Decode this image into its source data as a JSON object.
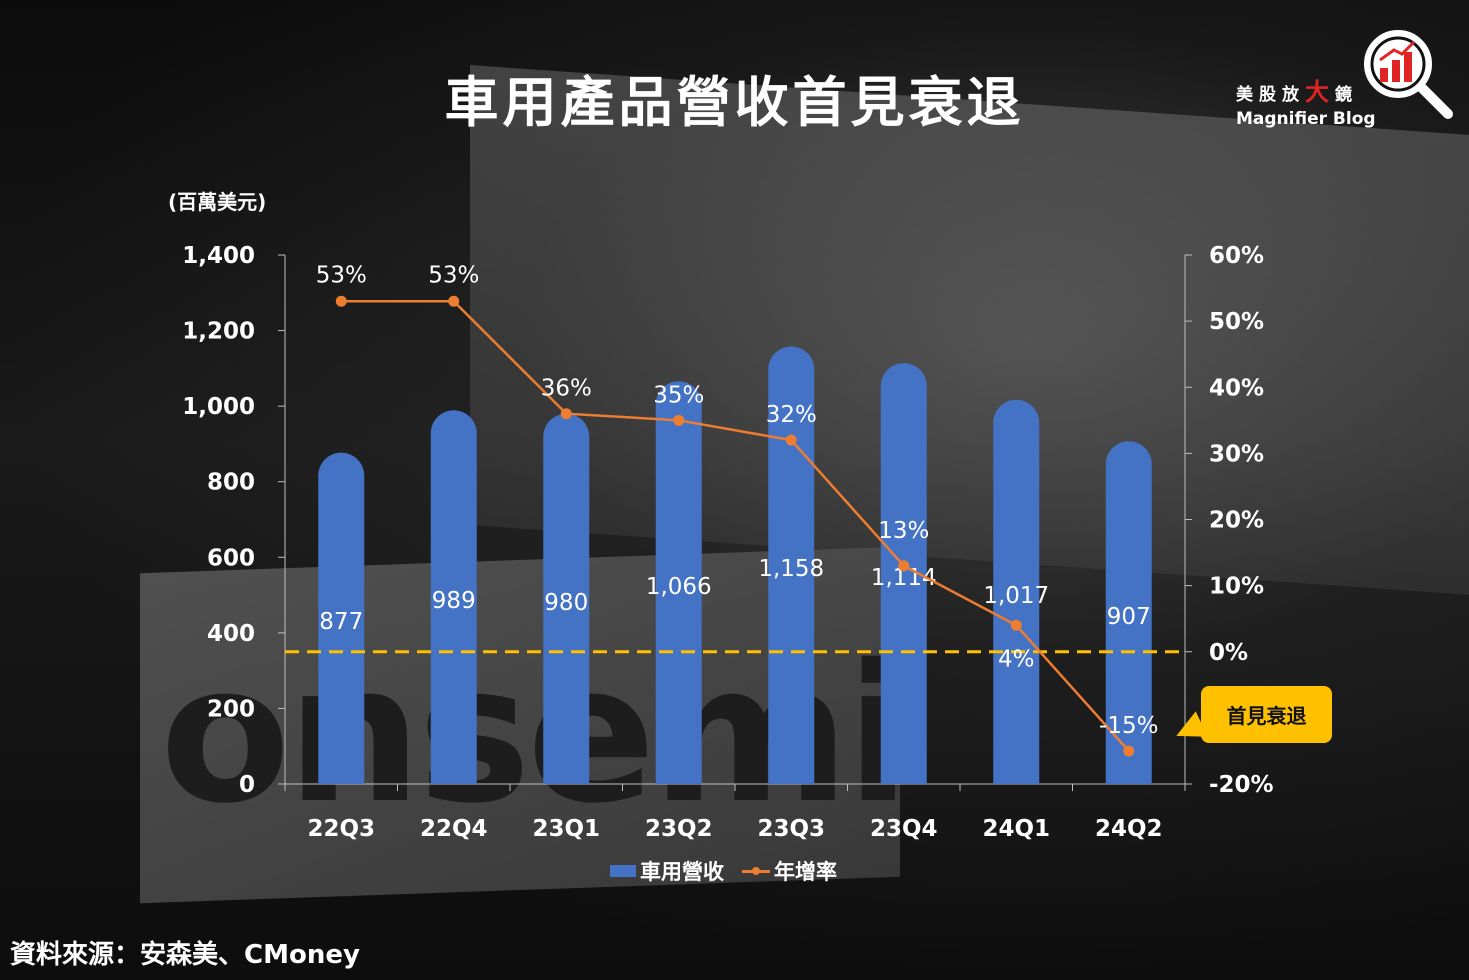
{
  "title": "車用產品營收首見衰退",
  "brand": {
    "cn_prefix": "美股放",
    "cn_accent": "大",
    "cn_suffix": "鏡",
    "en": "Magnifier Blog"
  },
  "unit_label": "(百萬美元)",
  "source": "資料來源：安森美、CMoney",
  "callout": "首見衰退",
  "background_logo": "onsemi",
  "colors": {
    "bar": "#4472c4",
    "line": "#ed7d31",
    "zero_line": "#ffc000",
    "callout": "#ffc000",
    "brand_accent": "#e02424"
  },
  "chart_data": {
    "type": "bar",
    "categories": [
      "22Q3",
      "22Q4",
      "23Q1",
      "23Q2",
      "23Q3",
      "23Q4",
      "24Q1",
      "24Q2"
    ],
    "series": [
      {
        "name": "車用營收",
        "type": "bar",
        "axis": "left",
        "values": [
          877,
          989,
          980,
          1066,
          1158,
          1114,
          1017,
          907
        ],
        "labels": [
          "877",
          "989",
          "980",
          "1,066",
          "1,158",
          "1,114",
          "1,017",
          "907"
        ]
      },
      {
        "name": "年增率",
        "type": "line",
        "axis": "right",
        "values": [
          53,
          53,
          36,
          35,
          32,
          13,
          4,
          -15
        ],
        "labels": [
          "53%",
          "53%",
          "36%",
          "35%",
          "32%",
          "13%",
          "4%",
          "-15%"
        ]
      }
    ],
    "y_left": {
      "min": 0,
      "max": 1400,
      "ticks": [
        "0",
        "200",
        "400",
        "600",
        "800",
        "1,000",
        "1,200",
        "1,400"
      ]
    },
    "y_right": {
      "min": -20,
      "max": 60,
      "ticks": [
        "-20%",
        "0%",
        "10%",
        "20%",
        "30%",
        "40%",
        "50%",
        "60%"
      ]
    },
    "grid": false,
    "legend": "bottom"
  }
}
